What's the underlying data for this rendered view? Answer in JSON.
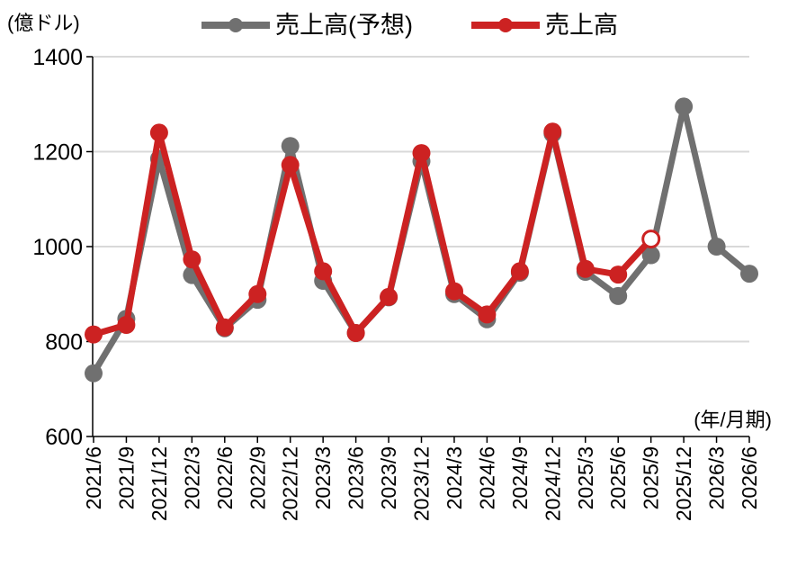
{
  "chart_data": {
    "type": "line",
    "y_unit": "(億ドル)",
    "x_unit": "(年/月期)",
    "ylim": [
      600,
      1400
    ],
    "yticks": [
      600,
      800,
      1000,
      1200,
      1400
    ],
    "grid": true,
    "legend_position": "top",
    "categories": [
      "2021/6",
      "2021/9",
      "2021/12",
      "2022/3",
      "2022/6",
      "2022/9",
      "2022/12",
      "2023/3",
      "2023/6",
      "2023/9",
      "2023/12",
      "2024/3",
      "2024/6",
      "2024/9",
      "2024/12",
      "2025/3",
      "2025/6",
      "2025/9",
      "2025/12",
      "2026/3",
      "2026/6"
    ],
    "series": [
      {
        "name": "売上高(予想)",
        "color": "#707070",
        "values": [
          733,
          848,
          1185,
          940,
          828,
          888,
          1212,
          928,
          818,
          893,
          1180,
          900,
          847,
          945,
          1238,
          947,
          896,
          982,
          1295,
          1000,
          943
        ]
      },
      {
        "name": "売上高",
        "color": "#cc2222",
        "values": [
          815,
          835,
          1240,
          973,
          830,
          900,
          1172,
          948,
          818,
          894,
          1197,
          906,
          857,
          948,
          1242,
          953,
          941,
          1016,
          null,
          null,
          null
        ],
        "hollow_last_point": true
      }
    ]
  }
}
